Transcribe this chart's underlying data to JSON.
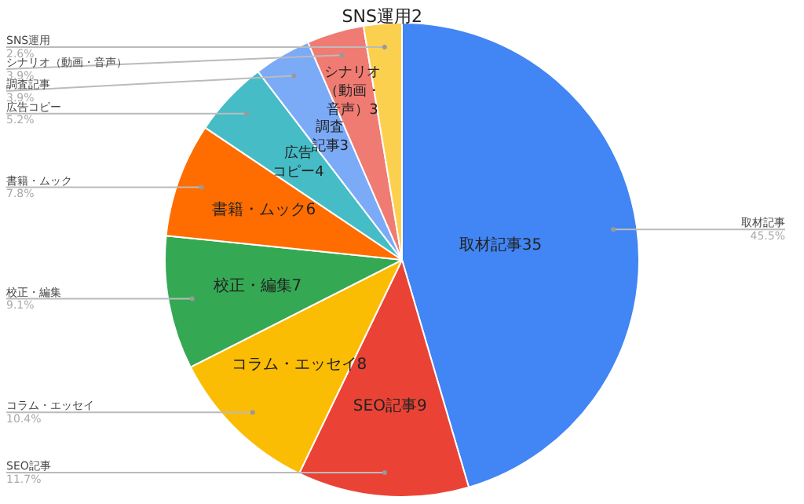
{
  "chart_data": {
    "type": "pie",
    "categories": [
      "取材記事",
      "SEO記事",
      "コラム・エッセイ",
      "校正・編集",
      "書籍・ムック",
      "広告コピー",
      "調査記事",
      "シナリオ（動画・音声）",
      "SNS運用"
    ],
    "values": [
      35,
      9,
      8,
      7,
      6,
      4,
      3,
      3,
      2
    ],
    "colors": [
      "#4285f4",
      "#ea4335",
      "#fbbc04",
      "#34a853",
      "#ff6d01",
      "#46bdc6",
      "#7baaf7",
      "#f07b72",
      "#fcd04f"
    ],
    "annotations": [
      "45.5%",
      "11.7%",
      "10.4%",
      "9.1%",
      "7.8%",
      "5.2%",
      "3.9%",
      "3.9%",
      "2.6%"
    ],
    "data_labels": true,
    "legend": false
  }
}
